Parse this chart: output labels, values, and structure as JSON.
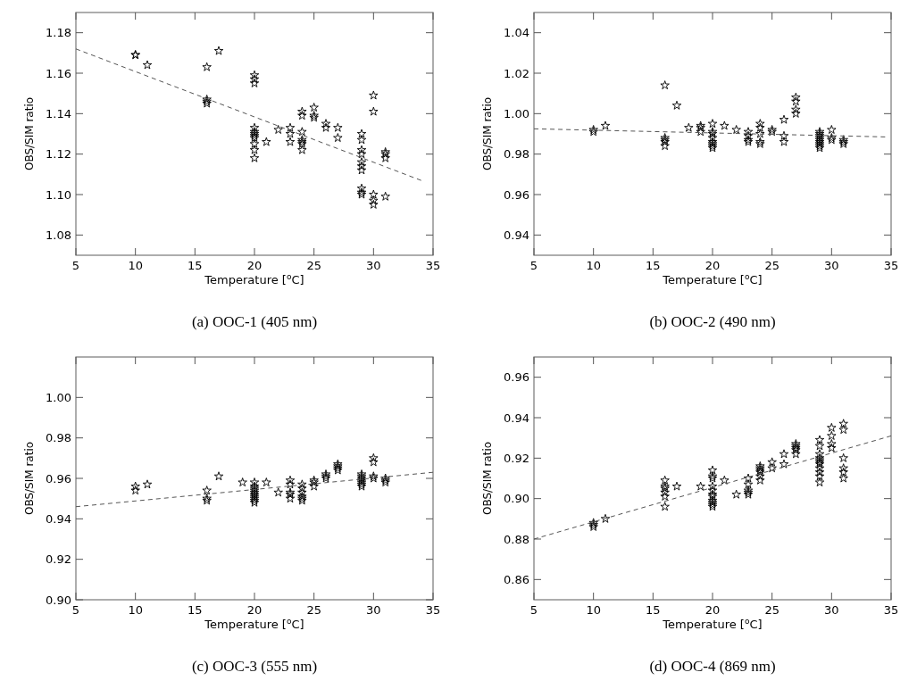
{
  "chart_data": [
    {
      "type": "scatter",
      "title": "(a) OOC-1 (405 nm)",
      "xlabel": "Temperature [$^{o}$C]",
      "ylabel": "OBS/SIM ratio",
      "xlim": [
        5,
        35
      ],
      "xticks": [
        5,
        10,
        15,
        20,
        25,
        30,
        35
      ],
      "ylim": [
        1.07,
        1.19
      ],
      "yticks": [
        1.08,
        {
          "value": 1.1,
          "label": "1.10"
        },
        1.12,
        1.14,
        1.16,
        1.18
      ],
      "grid": false,
      "series": [
        {
          "marker": "star",
          "color": "#000000",
          "x": [
            10,
            10,
            11,
            16,
            16,
            16,
            16,
            17,
            20,
            20,
            20,
            20,
            20,
            20,
            20,
            20,
            20,
            20,
            20,
            21,
            22,
            23,
            23,
            23,
            24,
            24,
            24,
            24,
            24,
            24,
            24,
            25,
            25,
            25,
            26,
            26,
            27,
            27,
            29,
            29,
            29,
            29,
            29,
            29,
            29,
            29,
            29,
            29,
            30,
            30,
            30,
            30,
            30,
            31,
            31,
            31,
            31
          ],
          "values": [
            1.169,
            1.169,
            1.164,
            1.163,
            1.147,
            1.146,
            1.145,
            1.171,
            1.159,
            1.157,
            1.155,
            1.133,
            1.131,
            1.13,
            1.129,
            1.128,
            1.125,
            1.122,
            1.118,
            1.126,
            1.132,
            1.133,
            1.13,
            1.126,
            1.141,
            1.139,
            1.131,
            1.127,
            1.126,
            1.125,
            1.122,
            1.143,
            1.139,
            1.138,
            1.135,
            1.133,
            1.133,
            1.128,
            1.13,
            1.127,
            1.122,
            1.12,
            1.116,
            1.114,
            1.112,
            1.103,
            1.101,
            1.1,
            1.149,
            1.141,
            1.1,
            1.097,
            1.095,
            1.121,
            1.12,
            1.118,
            1.099
          ]
        },
        {
          "type": "line",
          "color": "#555555",
          "line_style": "dashed",
          "x": [
            5,
            34
          ],
          "values": [
            1.172,
            1.107
          ]
        }
      ]
    },
    {
      "type": "scatter",
      "title": "(b) OOC-2 (490 nm)",
      "xlabel": "Temperature [$^{o}$C]",
      "ylabel": "OBS/SIM ratio",
      "xlim": [
        5,
        35
      ],
      "xticks": [
        5,
        10,
        15,
        20,
        25,
        30,
        35
      ],
      "ylim": [
        0.93,
        1.05
      ],
      "yticks": [
        0.94,
        0.96,
        0.98,
        {
          "value": 1,
          "label": "1.00"
        },
        1.02,
        1.04
      ],
      "grid": false,
      "series": [
        {
          "marker": "star",
          "color": "#000000",
          "x": [
            10,
            10,
            11,
            16,
            16,
            16,
            16,
            16,
            17,
            18,
            19,
            19,
            19,
            20,
            20,
            20,
            20,
            20,
            20,
            20,
            20,
            21,
            22,
            23,
            23,
            23,
            23,
            24,
            24,
            24,
            24,
            24,
            25,
            25,
            26,
            26,
            26,
            27,
            27,
            27,
            27,
            29,
            29,
            29,
            29,
            29,
            29,
            29,
            29,
            29,
            30,
            30,
            30,
            31,
            31,
            31
          ],
          "values": [
            0.992,
            0.991,
            0.994,
            1.014,
            0.988,
            0.987,
            0.986,
            0.984,
            1.004,
            0.993,
            0.994,
            0.993,
            0.991,
            0.995,
            0.991,
            0.99,
            0.988,
            0.986,
            0.985,
            0.984,
            0.983,
            0.994,
            0.992,
            0.991,
            0.989,
            0.987,
            0.986,
            0.995,
            0.993,
            0.99,
            0.986,
            0.985,
            0.992,
            0.991,
            0.997,
            0.989,
            0.986,
            1.008,
            1.006,
            1.002,
            1.0,
            0.991,
            0.99,
            0.989,
            0.988,
            0.987,
            0.986,
            0.985,
            0.984,
            0.983,
            0.992,
            0.988,
            0.987,
            0.987,
            0.986,
            0.985
          ]
        },
        {
          "type": "line",
          "color": "#555555",
          "line_style": "dashed",
          "x": [
            5,
            34.5
          ],
          "values": [
            0.9925,
            0.9885
          ]
        }
      ]
    },
    {
      "type": "scatter",
      "title": "(c) OOC-3 (555 nm)",
      "xlabel": "Temperature [$^{o}$C]",
      "ylabel": "OBS/SIM ratio",
      "xlim": [
        5,
        35
      ],
      "xticks": [
        5,
        10,
        15,
        20,
        25,
        30,
        35
      ],
      "ylim": [
        0.9,
        1.02
      ],
      "yticks": [
        {
          "value": 0.9,
          "label": "0.90"
        },
        0.92,
        0.94,
        0.96,
        0.98,
        {
          "value": 1,
          "label": "1.00"
        }
      ],
      "grid": false,
      "series": [
        {
          "marker": "star",
          "color": "#000000",
          "x": [
            10,
            10,
            11,
            16,
            16,
            16,
            17,
            19,
            20,
            20,
            20,
            20,
            20,
            20,
            20,
            20,
            20,
            20,
            21,
            22,
            23,
            23,
            23,
            23,
            23,
            24,
            24,
            24,
            24,
            24,
            24,
            25,
            25,
            25,
            26,
            26,
            26,
            27,
            27,
            27,
            27,
            29,
            29,
            29,
            29,
            29,
            29,
            29,
            30,
            30,
            30,
            30,
            31,
            31,
            31
          ],
          "values": [
            0.956,
            0.954,
            0.957,
            0.954,
            0.95,
            0.949,
            0.961,
            0.958,
            0.958,
            0.956,
            0.955,
            0.954,
            0.953,
            0.952,
            0.951,
            0.95,
            0.949,
            0.948,
            0.958,
            0.953,
            0.959,
            0.957,
            0.953,
            0.952,
            0.95,
            0.957,
            0.955,
            0.953,
            0.951,
            0.95,
            0.949,
            0.959,
            0.958,
            0.956,
            0.962,
            0.961,
            0.96,
            0.967,
            0.966,
            0.965,
            0.964,
            0.962,
            0.961,
            0.96,
            0.959,
            0.958,
            0.957,
            0.956,
            0.97,
            0.968,
            0.961,
            0.96,
            0.96,
            0.959,
            0.958
          ]
        },
        {
          "type": "line",
          "color": "#555555",
          "line_style": "dashed",
          "x": [
            5,
            35
          ],
          "values": [
            0.946,
            0.963
          ]
        }
      ]
    },
    {
      "type": "scatter",
      "title": "(d) OOC-4 (869 nm)",
      "xlabel": "Temperature [$^{o}$C]",
      "ylabel": "OBS/SIM ratio",
      "xlim": [
        5,
        35
      ],
      "xticks": [
        5,
        10,
        15,
        20,
        25,
        30,
        35
      ],
      "ylim": [
        0.85,
        0.97
      ],
      "yticks": [
        0.86,
        0.88,
        {
          "value": 0.9,
          "label": "0.90"
        },
        0.92,
        0.94,
        0.96
      ],
      "grid": false,
      "series": [
        {
          "marker": "star",
          "color": "#000000",
          "x": [
            10,
            10,
            10,
            11,
            16,
            16,
            16,
            16,
            16,
            16,
            17,
            19,
            20,
            20,
            20,
            20,
            20,
            20,
            20,
            20,
            20,
            20,
            20,
            21,
            22,
            23,
            23,
            23,
            23,
            23,
            24,
            24,
            24,
            24,
            24,
            24,
            25,
            25,
            26,
            26,
            27,
            27,
            27,
            27,
            27,
            29,
            29,
            29,
            29,
            29,
            29,
            29,
            29,
            29,
            29,
            29,
            30,
            30,
            30,
            30,
            31,
            31,
            31,
            31,
            31,
            31
          ],
          "values": [
            0.888,
            0.887,
            0.886,
            0.89,
            0.909,
            0.906,
            0.905,
            0.903,
            0.901,
            0.896,
            0.906,
            0.906,
            0.914,
            0.911,
            0.91,
            0.906,
            0.904,
            0.902,
            0.901,
            0.899,
            0.898,
            0.897,
            0.896,
            0.909,
            0.902,
            0.91,
            0.907,
            0.904,
            0.903,
            0.902,
            0.916,
            0.915,
            0.914,
            0.913,
            0.911,
            0.909,
            0.918,
            0.915,
            0.922,
            0.917,
            0.927,
            0.926,
            0.925,
            0.924,
            0.922,
            0.929,
            0.926,
            0.922,
            0.92,
            0.919,
            0.918,
            0.917,
            0.915,
            0.913,
            0.911,
            0.908,
            0.935,
            0.931,
            0.927,
            0.925,
            0.937,
            0.934,
            0.92,
            0.915,
            0.913,
            0.91
          ]
        },
        {
          "type": "line",
          "color": "#555555",
          "line_style": "dashed",
          "x": [
            5,
            35
          ],
          "values": [
            0.88,
            0.931
          ]
        }
      ]
    }
  ]
}
